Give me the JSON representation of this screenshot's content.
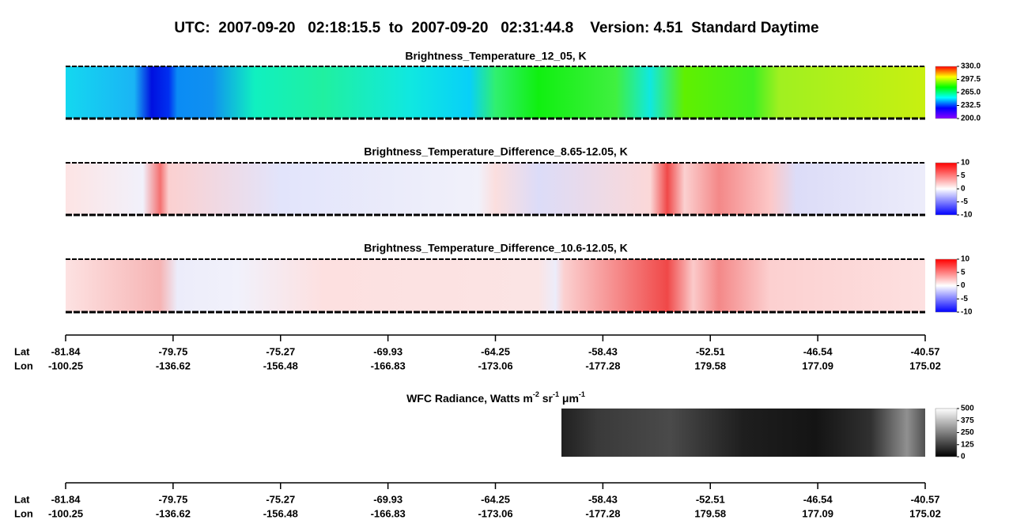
{
  "title": "UTC:  2007-09-20   02:18:15.5  to  2007-09-20   02:31:44.8    Version: 4.51  Standard Daytime",
  "chart_data": [
    {
      "type": "heatmap",
      "title": "Brightness_Temperature_12_05, K",
      "clim": [
        200,
        330
      ],
      "cticks": [
        {
          "value": 200,
          "label": "200.0"
        },
        {
          "value": 232.5,
          "label": "232.5"
        },
        {
          "value": 265,
          "label": "265.0"
        },
        {
          "value": 297.5,
          "label": "297.5"
        },
        {
          "value": 330,
          "label": "330.0"
        }
      ],
      "colormap": [
        "#8a00ff",
        "#0000ff",
        "#00ffff",
        "#00ff00",
        "#ffff00",
        "#ff0000"
      ]
    },
    {
      "type": "heatmap",
      "title": "Brightness_Temperature_Difference_8.65-12.05, K",
      "clim": [
        -10,
        10
      ],
      "cticks": [
        -10,
        -5,
        0,
        5,
        10
      ],
      "colormap": [
        "#0000ff",
        "#ffffff",
        "#ff0000"
      ]
    },
    {
      "type": "heatmap",
      "title": "Brightness_Temperature_Difference_10.6-12.05, K",
      "clim": [
        -10,
        10
      ],
      "cticks": [
        -10,
        -5,
        0,
        5,
        10
      ],
      "colormap": [
        "#0000ff",
        "#ffffff",
        "#ff0000"
      ]
    },
    {
      "type": "heatmap",
      "title_parts": [
        "WFC Radiance, Watts m",
        "-2",
        " sr",
        "-1",
        " μm",
        "-1"
      ],
      "clim": [
        0,
        500
      ],
      "cticks": [
        0,
        125,
        250,
        375,
        500
      ],
      "colormap": [
        "#000000",
        "#ffffff"
      ]
    }
  ],
  "axes": [
    {
      "lat_label": "Lat",
      "lon_label": "Lon",
      "lat": [
        -81.84,
        -79.75,
        -75.27,
        -69.93,
        -64.25,
        -58.43,
        -52.51,
        -46.54,
        -40.57
      ],
      "lon": [
        -100.25,
        -136.62,
        -156.48,
        -166.83,
        -173.06,
        -177.28,
        179.58,
        177.09,
        175.02
      ]
    },
    {
      "lat_label": "Lat",
      "lon_label": "Lon",
      "lat": [
        -81.84,
        -79.75,
        -75.27,
        -69.93,
        -64.25,
        -58.43,
        -52.51,
        -46.54,
        -40.57
      ],
      "lon": [
        -100.25,
        -136.62,
        -156.48,
        -166.83,
        -173.06,
        -177.28,
        179.58,
        177.09,
        175.02
      ]
    }
  ]
}
